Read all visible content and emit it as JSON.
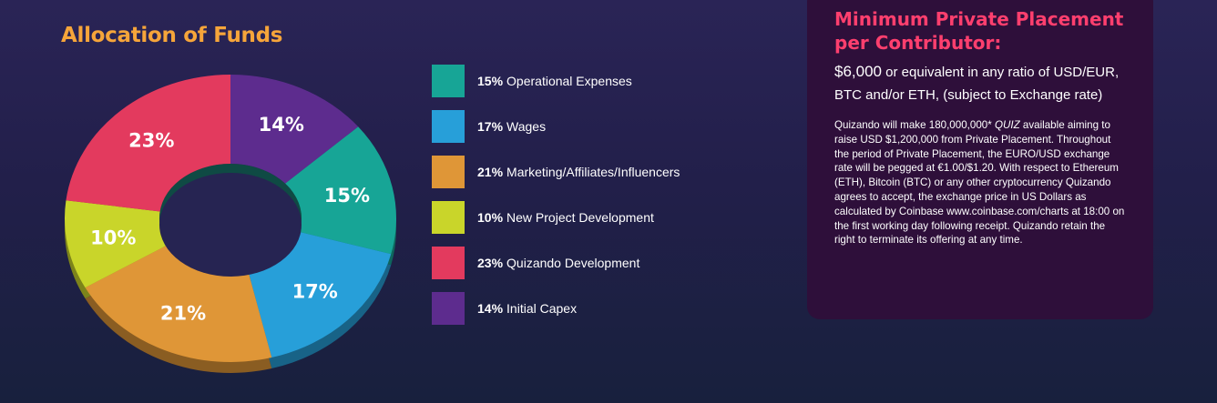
{
  "colors": {
    "title": "#f6a53a",
    "heading": "#ff3f6e"
  },
  "chart_data": {
    "type": "pie",
    "title": "Allocation of Funds",
    "donut": true,
    "slices": [
      {
        "label": "Operational Expenses",
        "value": 15,
        "display": "15%",
        "color": "#17a596"
      },
      {
        "label": "Wages",
        "value": 17,
        "display": "17%",
        "color": "#279fd9"
      },
      {
        "label": "Marketing/Affiliates/Influencers",
        "value": 21,
        "display": "21%",
        "color": "#df9637"
      },
      {
        "label": "New Project Development",
        "value": 10,
        "display": "10%",
        "color": "#c9d52a"
      },
      {
        "label": "Quizando Development",
        "value": 23,
        "display": "23%",
        "color": "#e33a5e"
      },
      {
        "label": "Initial Capex",
        "value": 14,
        "display": "14%",
        "color": "#5d2c8e"
      }
    ],
    "draw_order": [
      5,
      0,
      1,
      2,
      3,
      4
    ],
    "legend_position": "right"
  },
  "panel": {
    "heading_line1": "Minimum Private Placement",
    "heading_line2": "per Contributor:",
    "amount": "$6,000",
    "lead_rest": " or equivalent in any ratio of USD/EUR,",
    "lead_line2": "BTC and/or ETH, (subject to Exchange rate)",
    "body_part1": "Quizando will make 180,000,000* ",
    "body_token": "QUIZ",
    "body_part2": " available aiming to raise USD $1,200,000 from Private Placement. Throughout the period of Private Placement, the EURO/USD exchange rate will be pegged at €1.00/$1.20. With respect to Ethereum (ETH), Bitcoin (BTC) or any other cryptocurrency Quizando agrees to accept, the exchange price in US Dollars as calculated by Coinbase www.coinbase.com/charts at 18:00 on the first working day following receipt. Quizando retain the right to terminate its offering at any time."
  }
}
